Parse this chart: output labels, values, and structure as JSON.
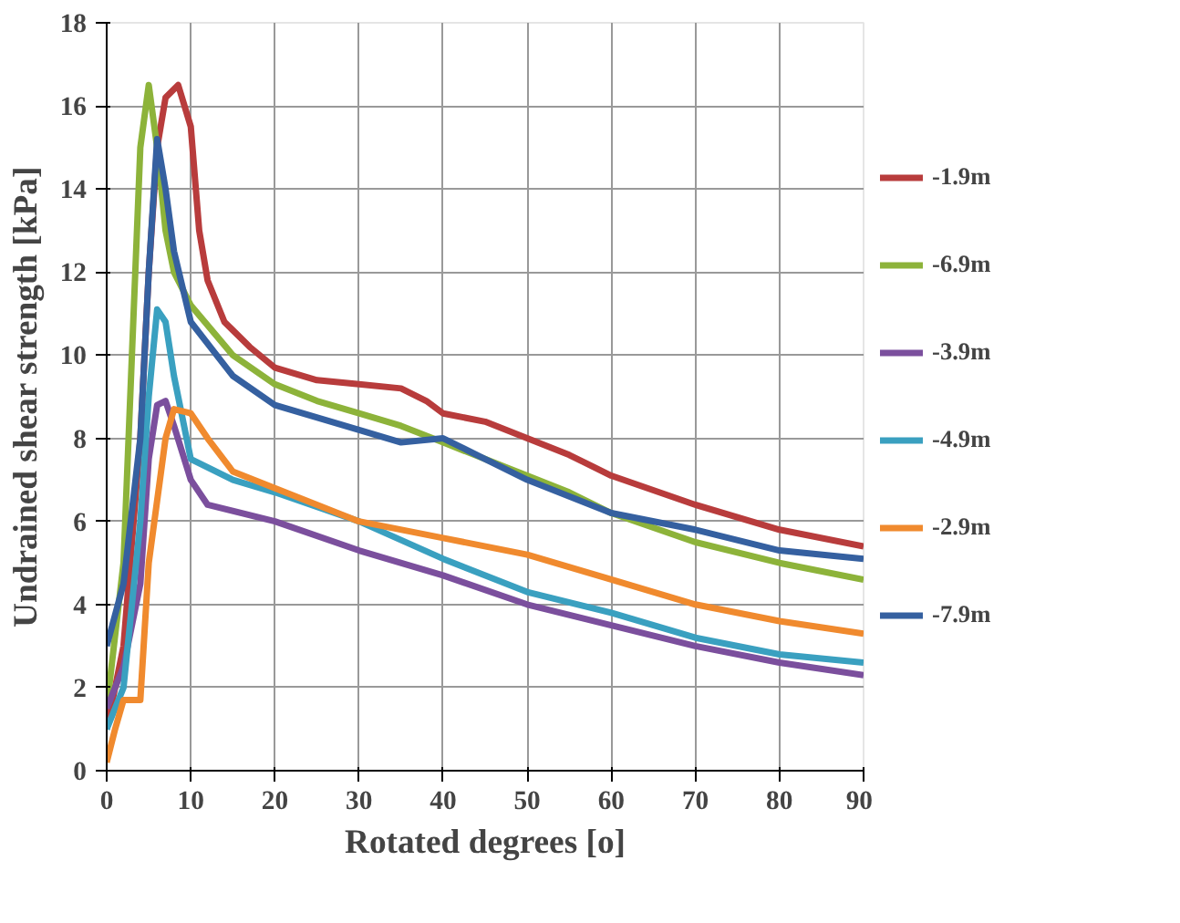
{
  "chart_data": {
    "type": "line",
    "xlabel": "Rotated degrees [o]",
    "ylabel": "Undrained shear strength [kPa]",
    "xlim": [
      0,
      90
    ],
    "ylim": [
      0,
      18
    ],
    "xticks": [
      0,
      10,
      20,
      30,
      40,
      50,
      60,
      70,
      80,
      90
    ],
    "yticks": [
      0,
      2,
      4,
      6,
      8,
      10,
      12,
      14,
      16,
      18
    ],
    "grid": true,
    "legend": "right",
    "line_style": "solid",
    "marker": "none",
    "series": [
      {
        "name": "-1.9m",
        "color": "#b83c3c",
        "x": [
          0,
          2,
          4,
          5,
          6,
          7,
          8.5,
          10,
          11,
          12,
          14,
          17,
          20,
          25,
          30,
          35,
          38,
          40,
          45,
          50,
          55,
          60,
          70,
          80,
          90
        ],
        "values": [
          1,
          3,
          8,
          12,
          15,
          16.2,
          16.5,
          15.5,
          13,
          11.8,
          10.8,
          10.2,
          9.7,
          9.4,
          9.3,
          9.2,
          8.9,
          8.6,
          8.4,
          8.0,
          7.6,
          7.1,
          6.4,
          5.8,
          5.4
        ]
      },
      {
        "name": "-6.9m",
        "color": "#8db33a",
        "x": [
          0,
          2,
          3,
          4,
          5,
          6,
          7,
          8,
          10,
          15,
          20,
          25,
          30,
          35,
          40,
          45,
          50,
          55,
          60,
          70,
          80,
          90
        ],
        "values": [
          1.5,
          5,
          10,
          15,
          16.5,
          15,
          13,
          12,
          11.2,
          10,
          9.3,
          8.9,
          8.6,
          8.3,
          7.9,
          7.5,
          7.1,
          6.7,
          6.2,
          5.5,
          5.0,
          4.6
        ]
      },
      {
        "name": "-3.9m",
        "color": "#7b4f9d",
        "x": [
          0,
          2,
          4,
          5,
          6,
          7,
          8,
          10,
          12,
          20,
          30,
          40,
          50,
          60,
          70,
          80,
          90
        ],
        "values": [
          1.5,
          2.5,
          4.5,
          7.5,
          8.8,
          8.9,
          8.3,
          7.0,
          6.4,
          6.0,
          5.3,
          4.7,
          4.0,
          3.5,
          3.0,
          2.6,
          2.3
        ]
      },
      {
        "name": "-4.9m",
        "color": "#3aa0c0",
        "x": [
          0,
          2,
          4,
          5,
          6,
          7,
          8,
          10,
          15,
          20,
          30,
          40,
          50,
          60,
          70,
          80,
          90
        ],
        "values": [
          1.0,
          2,
          6,
          9,
          11.1,
          10.8,
          9.5,
          7.5,
          7.0,
          6.7,
          6.0,
          5.1,
          4.3,
          3.8,
          3.2,
          2.8,
          2.6
        ]
      },
      {
        "name": "-2.9m",
        "color": "#f08a2e",
        "x": [
          0,
          1,
          2,
          4,
          5,
          7,
          8,
          10,
          12,
          15,
          20,
          30,
          40,
          50,
          60,
          70,
          80,
          90
        ],
        "values": [
          0.2,
          1,
          1.7,
          1.7,
          5,
          8,
          8.7,
          8.6,
          8.0,
          7.2,
          6.8,
          6.0,
          5.6,
          5.2,
          4.6,
          4.0,
          3.6,
          3.3
        ]
      },
      {
        "name": "-7.9m",
        "color": "#3560a0",
        "x": [
          0,
          2,
          4,
          5,
          6,
          7,
          8,
          10,
          15,
          20,
          30,
          35,
          40,
          45,
          50,
          60,
          70,
          80,
          90
        ],
        "values": [
          3,
          4.5,
          8,
          12,
          15.2,
          14,
          12.5,
          10.8,
          9.5,
          8.8,
          8.2,
          7.9,
          8.0,
          7.5,
          7.0,
          6.2,
          5.8,
          5.3,
          5.1
        ]
      }
    ]
  }
}
